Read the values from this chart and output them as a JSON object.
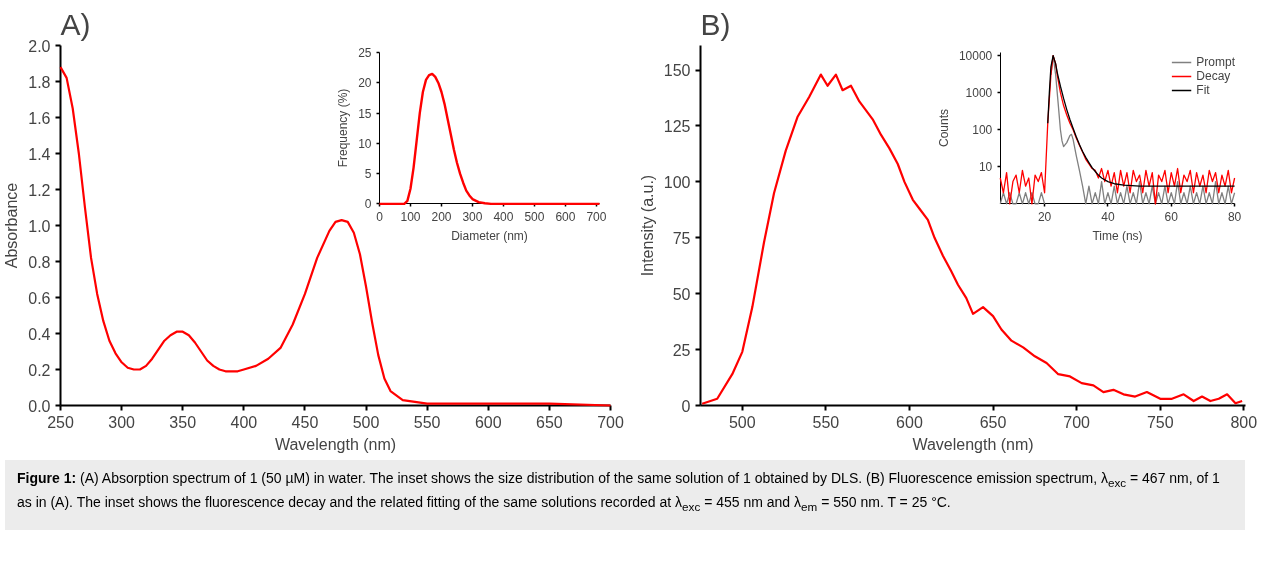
{
  "chart_data": [
    {
      "type": "line",
      "title": "A)",
      "xlabel": "Wavelength (nm)",
      "ylabel": "Absorbance",
      "xlim": [
        250,
        700
      ],
      "ylim": [
        0,
        2.0
      ],
      "xticks": [
        250,
        300,
        350,
        400,
        450,
        500,
        550,
        600,
        650,
        700
      ],
      "yticks": [
        {
          "value": 0,
          "label": "0.0"
        },
        0.2,
        0.4,
        0.6,
        0.8,
        {
          "value": 1,
          "label": "1.0"
        },
        1.2,
        1.4,
        1.6,
        1.8,
        {
          "value": 2,
          "label": "2.0"
        }
      ],
      "series": [
        {
          "color": "#ff0000",
          "x": [
            250,
            255,
            260,
            265,
            270,
            275,
            280,
            285,
            290,
            295,
            300,
            305,
            310,
            315,
            320,
            325,
            330,
            335,
            340,
            345,
            350,
            355,
            360,
            365,
            370,
            375,
            380,
            385,
            390,
            395,
            400,
            410,
            420,
            430,
            440,
            450,
            460,
            470,
            475,
            480,
            485,
            490,
            495,
            500,
            505,
            510,
            515,
            520,
            530,
            540,
            550,
            600,
            650,
            700
          ],
          "values": [
            1.88,
            1.82,
            1.65,
            1.4,
            1.1,
            0.82,
            0.62,
            0.47,
            0.36,
            0.29,
            0.24,
            0.21,
            0.2,
            0.2,
            0.22,
            0.26,
            0.31,
            0.36,
            0.39,
            0.41,
            0.41,
            0.39,
            0.35,
            0.3,
            0.25,
            0.22,
            0.2,
            0.19,
            0.19,
            0.19,
            0.2,
            0.22,
            0.26,
            0.32,
            0.45,
            0.62,
            0.82,
            0.97,
            1.02,
            1.03,
            1.02,
            0.96,
            0.84,
            0.66,
            0.46,
            0.28,
            0.15,
            0.08,
            0.03,
            0.02,
            0.01,
            0.01,
            0.01,
            0.0
          ]
        }
      ],
      "annotations": [
        "Figure 1: (A) Absorption spectrum of 1 (50 µM) in water. The inset shows the size distribution of the same solution of 1 obtained by DLS. (B) Fluorescence emission spectrum, λ$_{exc}$ = 467 nm, of 1 as in (A). The inset shows the fluorescence decay and the related fitting of the same solutions recorded at λ$_{exc}$ = 455 nm and λ$_{em}$ = 550 nm. T = 25 °C."
      ]
    },
    {
      "type": "line",
      "xlabel": "Diameter (nm)",
      "ylabel": "Frequency (%)",
      "xlim": [
        0,
        710
      ],
      "ylim": [
        0,
        25
      ],
      "xticks": [
        0,
        100,
        200,
        300,
        400,
        500,
        600,
        700
      ],
      "yticks": [
        0,
        5,
        10,
        15,
        20,
        25
      ],
      "series": [
        {
          "color": "#ff0000",
          "x": [
            0,
            80,
            90,
            100,
            110,
            120,
            130,
            140,
            150,
            160,
            170,
            180,
            190,
            200,
            210,
            220,
            230,
            240,
            250,
            260,
            270,
            280,
            290,
            300,
            320,
            340,
            360,
            710
          ],
          "values": [
            0,
            0,
            0.5,
            2.5,
            6,
            10.5,
            15,
            18.5,
            20.5,
            21.3,
            21.5,
            21.0,
            20,
            18.5,
            16.5,
            14,
            11.5,
            9,
            6.8,
            5,
            3.5,
            2.2,
            1.4,
            0.8,
            0.3,
            0.1,
            0,
            0
          ]
        }
      ]
    },
    {
      "type": "line",
      "title": "B)",
      "xlabel": "Wavelength (nm)",
      "ylabel": "Intensity (a.u.)",
      "xlim": [
        475,
        801
      ],
      "ylim": [
        0,
        161
      ],
      "xticks": [
        500,
        550,
        600,
        650,
        700,
        750,
        800
      ],
      "yticks": [
        0,
        25,
        50,
        75,
        100,
        125,
        150
      ],
      "series": [
        {
          "color": "#ff0000",
          "x": [
            476,
            485,
            494,
            500,
            506,
            513,
            519,
            526,
            533,
            540,
            547,
            551,
            556,
            560,
            565,
            570,
            574,
            578,
            583,
            588,
            593,
            597,
            602,
            606,
            611,
            615,
            620,
            625,
            629,
            634,
            638,
            644,
            650,
            655,
            661,
            668,
            675,
            682,
            689,
            696,
            703,
            710,
            716,
            722,
            728,
            735,
            742,
            750,
            757,
            764,
            770,
            775,
            780,
            785,
            790,
            795,
            799
          ],
          "values": [
            0.8,
            3,
            14,
            24,
            44,
            73,
            95,
            114,
            129,
            138,
            148,
            143,
            148,
            141,
            143,
            136,
            132,
            128,
            121,
            115,
            108,
            100,
            92,
            88,
            83,
            75,
            67,
            60,
            54,
            48,
            41,
            44,
            40,
            34,
            29,
            26,
            22,
            19,
            14,
            13,
            10,
            9,
            6,
            7,
            5,
            4,
            6,
            3,
            3,
            5,
            2,
            4,
            2,
            3,
            5,
            1,
            2
          ]
        }
      ]
    },
    {
      "type": "line",
      "xlabel": "Time (ns)",
      "ylabel": "Counts",
      "log": "y",
      "legend": "top right",
      "xlim": [
        6,
        80
      ],
      "ylim": [
        1,
        12000
      ],
      "xticks": [
        20,
        40,
        60,
        80
      ],
      "yticks": [
        10,
        100,
        1000,
        10000
      ],
      "series": [
        {
          "name": "Prompt",
          "color": "#808080",
          "x": [
            6,
            7,
            8,
            9,
            10,
            11,
            12,
            13,
            14,
            15,
            16,
            17,
            18,
            19,
            20,
            21,
            22,
            22.7,
            23.5,
            24.3,
            25,
            25.5,
            26,
            27,
            28,
            28.5,
            29,
            30,
            31,
            32,
            33,
            34,
            35,
            36,
            37,
            38,
            39,
            40,
            41,
            42,
            43,
            44,
            45,
            46,
            47,
            48,
            49,
            50,
            51,
            52,
            53,
            54,
            55,
            56,
            57,
            58,
            59,
            60,
            61,
            62,
            63,
            64,
            65,
            66,
            67,
            68,
            69,
            70,
            71,
            72,
            73,
            74,
            75,
            76,
            77,
            78,
            79,
            80
          ],
          "values": [
            1,
            2,
            1,
            2,
            1,
            1,
            2,
            1,
            2,
            1,
            2,
            1,
            1,
            2,
            1,
            null,
            3000,
            10000,
            3000,
            500,
            100,
            50,
            35,
            45,
            70,
            75,
            55,
            20,
            8,
            3,
            1,
            3,
            1,
            2,
            1,
            4,
            1,
            2,
            1,
            3,
            1,
            2,
            1,
            3,
            1,
            2,
            1,
            4,
            1,
            2,
            1,
            3,
            1,
            2,
            1,
            3,
            1,
            2,
            1,
            4,
            1,
            2,
            1,
            3,
            1,
            2,
            1,
            3,
            1,
            2,
            1,
            4,
            1,
            2,
            1,
            3,
            1,
            2
          ]
        },
        {
          "name": "Decay",
          "color": "#ff0000",
          "x": [
            6,
            7,
            8,
            9,
            10,
            11,
            12,
            13,
            14,
            15,
            16,
            17,
            18,
            19,
            20,
            21,
            22,
            22.7,
            23.5,
            24,
            25,
            26,
            27,
            28,
            29,
            30,
            31,
            32,
            33,
            34,
            35,
            36,
            37,
            38,
            39,
            40,
            41,
            42,
            43,
            44,
            45,
            46,
            47,
            48,
            49,
            50,
            51,
            52,
            53,
            54,
            55,
            56,
            57,
            58,
            59,
            60,
            61,
            62,
            63,
            64,
            65,
            66,
            67,
            68,
            69,
            70,
            71,
            72,
            73,
            74,
            75,
            76,
            77,
            78,
            79,
            80
          ],
          "values": [
            5,
            2,
            7,
            1,
            4,
            6,
            2,
            8,
            3,
            5,
            1,
            6,
            4,
            7,
            2,
            150,
            3000,
            10000,
            6000,
            3000,
            1000,
            450,
            250,
            150,
            100,
            60,
            38,
            25,
            16,
            12,
            9,
            8,
            5,
            9,
            4,
            8,
            3,
            7,
            2,
            8,
            3,
            7,
            2,
            8,
            4,
            6,
            2,
            8,
            3,
            7,
            1,
            6,
            4,
            8,
            2,
            7,
            3,
            9,
            2,
            6,
            4,
            8,
            2,
            7,
            3,
            6,
            2,
            8,
            4,
            7,
            2,
            6,
            3,
            8,
            2,
            5
          ]
        },
        {
          "name": "Fit",
          "color": "#000000",
          "x": [
            21,
            21.5,
            22,
            22.7,
            23.5,
            24,
            25,
            26,
            27,
            28,
            29,
            30,
            31,
            32,
            33,
            34,
            35,
            36,
            37,
            38,
            40,
            42,
            45,
            50,
            60,
            70,
            80
          ],
          "values": [
            150,
            1000,
            5000,
            10000,
            6000,
            3500,
            1500,
            700,
            350,
            190,
            110,
            65,
            40,
            26,
            18,
            13,
            9.5,
            7.5,
            6,
            5,
            4,
            3.5,
            3.2,
            3,
            3,
            3,
            3
          ]
        }
      ]
    }
  ]
}
